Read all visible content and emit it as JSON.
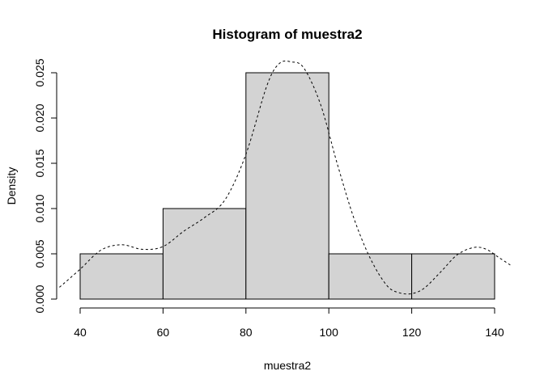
{
  "chart_data": {
    "type": "bar",
    "title": "Histogram of muestra2",
    "xlabel": "muestra2",
    "ylabel": "Density",
    "bins": [
      {
        "from": 40,
        "to": 60,
        "density": 0.005
      },
      {
        "from": 60,
        "to": 80,
        "density": 0.01
      },
      {
        "from": 80,
        "to": 100,
        "density": 0.025
      },
      {
        "from": 100,
        "to": 120,
        "density": 0.005
      },
      {
        "from": 120,
        "to": 140,
        "density": 0.005
      }
    ],
    "x_ticks": [
      "40",
      "60",
      "80",
      "100",
      "120",
      "140"
    ],
    "y_ticks": [
      "0.000",
      "0.005",
      "0.010",
      "0.015",
      "0.020",
      "0.025"
    ],
    "xlim": [
      35,
      145
    ],
    "ylim": [
      0,
      0.026
    ],
    "grid": false,
    "density_curve": {
      "style": "dashed",
      "x": [
        35,
        40,
        45,
        50,
        55,
        60,
        65,
        70,
        75,
        80,
        85,
        88,
        91,
        94,
        98,
        102,
        106,
        110,
        114,
        117,
        120,
        123,
        127,
        131,
        135,
        138,
        141,
        144
      ],
      "y": [
        0.0013,
        0.0033,
        0.0054,
        0.006,
        0.0055,
        0.0058,
        0.0075,
        0.009,
        0.011,
        0.016,
        0.0235,
        0.026,
        0.0262,
        0.0255,
        0.0215,
        0.015,
        0.009,
        0.0045,
        0.0015,
        0.0007,
        0.0006,
        0.0012,
        0.003,
        0.0049,
        0.0057,
        0.0055,
        0.0046,
        0.0037
      ]
    }
  }
}
